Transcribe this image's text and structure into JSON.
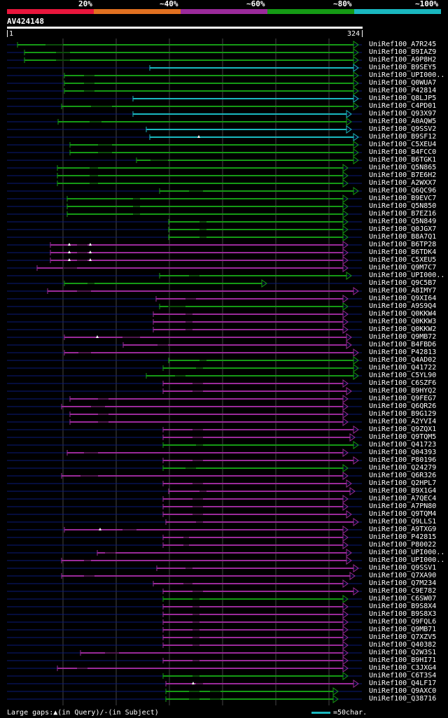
{
  "colors": {
    "c20": "#e8163c",
    "c40": "#e07020",
    "c60": "#9a2a9a",
    "c80": "#159a15",
    "c100": "#1ab8c0",
    "grid": "#444444",
    "thin": "#0a1a78",
    "white": "#ffffff"
  },
  "legend": [
    "20%",
    "~40%",
    "~60%",
    "~80%",
    "~100%"
  ],
  "query": {
    "title": "AV424148",
    "start": "1",
    "end": "324"
  },
  "rows": [
    {
      "label": "UniRef100_A7R245",
      "s": 25,
      "e": 512,
      "c": "g",
      "gaps": [
        [
          65,
          90
        ]
      ]
    },
    {
      "label": "UniRef100_B9IAZ9",
      "s": 35,
      "e": 512,
      "c": "g",
      "gaps": [
        [
          80,
          100
        ]
      ]
    },
    {
      "label": "UniRef100_A9P8H2",
      "s": 35,
      "e": 512,
      "c": "g",
      "gaps": [
        [
          80,
          100
        ]
      ]
    },
    {
      "label": "UniRef100_B9SEY5",
      "s": 214,
      "e": 512,
      "c": "c",
      "gaps": []
    },
    {
      "label": "UniRef100_UPI000..",
      "s": 92,
      "e": 512,
      "c": "g",
      "gaps": [
        [
          120,
          135
        ]
      ]
    },
    {
      "label": "UniRef100_Q0WUA7",
      "s": 92,
      "e": 512,
      "c": "g",
      "gaps": [
        [
          120,
          135
        ]
      ]
    },
    {
      "label": "UniRef100_P42814",
      "s": 92,
      "e": 512,
      "c": "g",
      "gaps": [
        [
          120,
          135
        ]
      ]
    },
    {
      "label": "UniRef100_Q8LJP5",
      "s": 190,
      "e": 512,
      "c": "c",
      "gaps": []
    },
    {
      "label": "UniRef100_C4PD01",
      "s": 88,
      "e": 512,
      "c": "g",
      "gaps": [
        [
          130,
          160
        ]
      ]
    },
    {
      "label": "UniRef100_Q93X97",
      "s": 190,
      "e": 502,
      "c": "c",
      "gaps": []
    },
    {
      "label": "UniRef100_A0AQW5",
      "s": 83,
      "e": 502,
      "c": "g",
      "gaps": [
        [
          128,
          145
        ]
      ]
    },
    {
      "label": "UniRef100_Q9SSV2",
      "s": 209,
      "e": 502,
      "c": "c",
      "gaps": []
    },
    {
      "label": "UniRef100_B9SF12",
      "s": 214,
      "e": 512,
      "c": "c",
      "gaps": [],
      "tri": [
        284
      ]
    },
    {
      "label": "UniRef100_C5XEU4",
      "s": 100,
      "e": 512,
      "c": "g",
      "gaps": [
        [
          140,
          160
        ]
      ]
    },
    {
      "label": "UniRef100_B4FCC0",
      "s": 100,
      "e": 512,
      "c": "g",
      "gaps": [
        [
          140,
          160
        ]
      ]
    },
    {
      "label": "UniRef100_B6TGK1",
      "s": 195,
      "e": 512,
      "c": "g",
      "gaps": [
        [
          215,
          240
        ]
      ]
    },
    {
      "label": "UniRef100_Q5N865",
      "s": 82,
      "e": 497,
      "c": "g",
      "gaps": [
        [
          128,
          140
        ]
      ]
    },
    {
      "label": "UniRef100_B7E6H2",
      "s": 82,
      "e": 497,
      "c": "g",
      "gaps": [
        [
          128,
          140
        ]
      ]
    },
    {
      "label": "UniRef100_A2WXX7",
      "s": 82,
      "e": 497,
      "c": "g",
      "gaps": [
        [
          128,
          140
        ]
      ]
    },
    {
      "label": "UniRef100_Q6QC96",
      "s": 228,
      "e": 512,
      "c": "g",
      "gaps": [
        [
          270,
          290
        ]
      ]
    },
    {
      "label": "UniRef100_B9EVC7",
      "s": 96,
      "e": 497,
      "c": "g",
      "gaps": [
        [
          190,
          200
        ]
      ]
    },
    {
      "label": "UniRef100_Q5N850",
      "s": 96,
      "e": 497,
      "c": "g",
      "gaps": [
        [
          190,
          200
        ]
      ]
    },
    {
      "label": "UniRef100_B7EZ16",
      "s": 96,
      "e": 497,
      "c": "g",
      "gaps": [
        [
          190,
          200
        ]
      ]
    },
    {
      "label": "UniRef100_Q5N849",
      "s": 241,
      "e": 497,
      "c": "g",
      "gaps": [
        [
          285,
          295
        ]
      ]
    },
    {
      "label": "UniRef100_Q0JGX7",
      "s": 241,
      "e": 497,
      "c": "g",
      "gaps": [
        [
          285,
          295
        ]
      ]
    },
    {
      "label": "UniRef100_B8A7Q1",
      "s": 241,
      "e": 497,
      "c": "g",
      "gaps": [
        [
          285,
          295
        ]
      ]
    },
    {
      "label": "UniRef100_B6TP28",
      "s": 72,
      "e": 497,
      "c": "m",
      "gaps": [
        [
          110,
          125
        ]
      ],
      "tri": [
        99,
        129
      ]
    },
    {
      "label": "UniRef100_B6TDK4",
      "s": 72,
      "e": 497,
      "c": "m",
      "gaps": [
        [
          110,
          125
        ]
      ],
      "tri": [
        99,
        129
      ]
    },
    {
      "label": "UniRef100_C5XEU5",
      "s": 72,
      "e": 497,
      "c": "m",
      "gaps": [
        [
          110,
          125
        ]
      ],
      "tri": [
        99,
        129
      ]
    },
    {
      "label": "UniRef100_Q9M7C7",
      "s": 53,
      "e": 497,
      "c": "m",
      "gaps": [
        [
          90,
          110
        ]
      ]
    },
    {
      "label": "UniRef100_UPI000..",
      "s": 228,
      "e": 502,
      "c": "g",
      "gaps": [
        [
          270,
          285
        ]
      ]
    },
    {
      "label": "UniRef100_Q9C5B7",
      "s": 92,
      "e": 381,
      "c": "g",
      "gaps": [
        [
          125,
          135
        ]
      ]
    },
    {
      "label": "UniRef100_A8IMY7",
      "s": 68,
      "e": 512,
      "c": "m",
      "gaps": [
        [
          110,
          130
        ]
      ]
    },
    {
      "label": "UniRef100_Q9XI64",
      "s": 223,
      "e": 497,
      "c": "m",
      "gaps": [
        [
          265,
          280
        ]
      ]
    },
    {
      "label": "UniRef100_A9S9Q4",
      "s": 228,
      "e": 497,
      "c": "g",
      "gaps": [
        [
          240,
          265
        ]
      ]
    },
    {
      "label": "UniRef100_Q0KKW4",
      "s": 219,
      "e": 497,
      "c": "m",
      "gaps": [
        [
          265,
          275
        ]
      ]
    },
    {
      "label": "UniRef100_Q0KKW3",
      "s": 219,
      "e": 497,
      "c": "m",
      "gaps": [
        [
          265,
          275
        ]
      ]
    },
    {
      "label": "UniRef100_Q0KKW2",
      "s": 219,
      "e": 497,
      "c": "m",
      "gaps": [
        [
          265,
          275
        ]
      ]
    },
    {
      "label": "UniRef100_Q9MB72",
      "s": 92,
      "e": 502,
      "c": "m",
      "gaps": [
        [
          175,
          200
        ]
      ],
      "tri": [
        139
      ]
    },
    {
      "label": "UniRef100_B4FBD6",
      "s": 176,
      "e": 502,
      "c": "m",
      "gaps": [
        [
          225,
          240
        ]
      ]
    },
    {
      "label": "UniRef100_P42813",
      "s": 92,
      "e": 512,
      "c": "m",
      "gaps": [
        [
          112,
          130
        ]
      ]
    },
    {
      "label": "UniRef100_Q4AD02",
      "s": 241,
      "e": 512,
      "c": "g",
      "gaps": [
        [
          285,
          295
        ]
      ]
    },
    {
      "label": "UniRef100_Q41722",
      "s": 233,
      "e": 512,
      "c": "g",
      "gaps": [
        [
          280,
          290
        ]
      ]
    },
    {
      "label": "UniRef100_C5YL90",
      "s": 209,
      "e": 512,
      "c": "g",
      "gaps": [
        [
          250,
          265
        ]
      ]
    },
    {
      "label": "UniRef100_C6SZF6",
      "s": 233,
      "e": 497,
      "c": "m",
      "gaps": [
        [
          275,
          290
        ]
      ]
    },
    {
      "label": "UniRef100_B9HYQ2",
      "s": 233,
      "e": 502,
      "c": "m",
      "gaps": [
        [
          275,
          290
        ]
      ]
    },
    {
      "label": "UniRef100_Q9FEG7",
      "s": 100,
      "e": 497,
      "c": "m",
      "gaps": [
        [
          140,
          155
        ]
      ]
    },
    {
      "label": "UniRef100_Q6QR26",
      "s": 88,
      "e": 497,
      "c": "m",
      "gaps": [
        [
          130,
          150
        ]
      ]
    },
    {
      "label": "UniRef100_B9G129",
      "s": 100,
      "e": 497,
      "c": "m",
      "gaps": [
        [
          140,
          155
        ]
      ]
    },
    {
      "label": "UniRef100_A2YVI4",
      "s": 100,
      "e": 497,
      "c": "m",
      "gaps": [
        [
          140,
          155
        ]
      ]
    },
    {
      "label": "UniRef100_Q9ZQX1",
      "s": 233,
      "e": 512,
      "c": "m",
      "gaps": [
        [
          275,
          290
        ]
      ]
    },
    {
      "label": "UniRef100_Q9TQM5",
      "s": 233,
      "e": 507,
      "c": "m",
      "gaps": [
        [
          275,
          290
        ]
      ]
    },
    {
      "label": "UniRef100_Q41723",
      "s": 233,
      "e": 512,
      "c": "g",
      "gaps": [
        [
          280,
          290
        ]
      ]
    },
    {
      "label": "UniRef100_Q04393",
      "s": 96,
      "e": 497,
      "c": "m",
      "gaps": [
        [
          120,
          140
        ]
      ]
    },
    {
      "label": "UniRef100_P80196",
      "s": 233,
      "e": 512,
      "c": "m",
      "gaps": [
        [
          275,
          290
        ]
      ]
    },
    {
      "label": "UniRef100_Q24279",
      "s": 233,
      "e": 497,
      "c": "g",
      "gaps": [
        [
          265,
          280
        ]
      ]
    },
    {
      "label": "UniRef100_Q6R326",
      "s": 88,
      "e": 497,
      "c": "m",
      "gaps": [
        [
          115,
          140
        ]
      ]
    },
    {
      "label": "UniRef100_Q2HPL7",
      "s": 233,
      "e": 502,
      "c": "m",
      "gaps": [
        [
          275,
          290
        ]
      ]
    },
    {
      "label": "UniRef100_B9X1G4",
      "s": 241,
      "e": 507,
      "c": "m",
      "gaps": [
        [
          285,
          295
        ]
      ]
    },
    {
      "label": "UniRef100_A7QEC4",
      "s": 233,
      "e": 497,
      "c": "m",
      "gaps": [
        [
          275,
          290
        ]
      ]
    },
    {
      "label": "UniRef100_A7PN80",
      "s": 233,
      "e": 497,
      "c": "m",
      "gaps": [
        [
          275,
          290
        ]
      ]
    },
    {
      "label": "UniRef100_Q9TQM4",
      "s": 233,
      "e": 502,
      "c": "m",
      "gaps": [
        [
          275,
          290
        ]
      ]
    },
    {
      "label": "UniRef100_Q9LLS1",
      "s": 237,
      "e": 512,
      "c": "m",
      "gaps": [
        [
          280,
          290
        ]
      ]
    },
    {
      "label": "UniRef100_A9TXG9",
      "s": 92,
      "e": 497,
      "c": "m",
      "gaps": [
        [
          175,
          195
        ]
      ],
      "tri": [
        143
      ]
    },
    {
      "label": "UniRef100_P42815",
      "s": 233,
      "e": 497,
      "c": "m",
      "gaps": [
        [
          262,
          270
        ]
      ]
    },
    {
      "label": "UniRef100_P80022",
      "s": 233,
      "e": 497,
      "c": "m",
      "gaps": [
        [
          262,
          270
        ]
      ]
    },
    {
      "label": "UniRef100_UPI000..",
      "s": 139,
      "e": 502,
      "c": "m",
      "gaps": [
        [
          150,
          165
        ]
      ]
    },
    {
      "label": "UniRef100_UPI000..",
      "s": 88,
      "e": 502,
      "c": "m",
      "gaps": [
        [
          120,
          130
        ]
      ]
    },
    {
      "label": "UniRef100_Q9SSV1",
      "s": 224,
      "e": 512,
      "c": "m",
      "gaps": [
        [
          265,
          275
        ]
      ]
    },
    {
      "label": "UniRef100_Q7XA90",
      "s": 88,
      "e": 507,
      "c": "m",
      "gaps": [
        [
          120,
          135
        ]
      ]
    },
    {
      "label": "UniRef100_Q7M234",
      "s": 219,
      "e": 497,
      "c": "m",
      "gaps": [
        [
          262,
          275
        ]
      ]
    },
    {
      "label": "UniRef100_C9E782",
      "s": 233,
      "e": 512,
      "c": "m",
      "gaps": [
        [
          275,
          290
        ]
      ]
    },
    {
      "label": "UniRef100_C6SW07",
      "s": 233,
      "e": 497,
      "c": "g",
      "gaps": [
        [
          275,
          285
        ]
      ]
    },
    {
      "label": "UniRef100_B9S8X4",
      "s": 233,
      "e": 497,
      "c": "m",
      "gaps": [
        [
          275,
          285
        ]
      ]
    },
    {
      "label": "UniRef100_B9S8X3",
      "s": 233,
      "e": 497,
      "c": "m",
      "gaps": [
        [
          275,
          285
        ]
      ]
    },
    {
      "label": "UniRef100_Q9FQL6",
      "s": 233,
      "e": 497,
      "c": "m",
      "gaps": [
        [
          275,
          285
        ]
      ]
    },
    {
      "label": "UniRef100_Q9MB71",
      "s": 233,
      "e": 497,
      "c": "m",
      "gaps": [
        [
          275,
          285
        ]
      ]
    },
    {
      "label": "UniRef100_Q7XZV5",
      "s": 233,
      "e": 497,
      "c": "m",
      "gaps": [
        [
          275,
          285
        ]
      ]
    },
    {
      "label": "UniRef100_Q40382",
      "s": 233,
      "e": 497,
      "c": "m",
      "gaps": [
        [
          275,
          285
        ]
      ]
    },
    {
      "label": "UniRef100_Q2W3S1",
      "s": 115,
      "e": 497,
      "c": "m",
      "gaps": [
        [
          150,
          170
        ]
      ]
    },
    {
      "label": "UniRef100_B9HI71",
      "s": 233,
      "e": 497,
      "c": "m",
      "gaps": [
        [
          275,
          285
        ]
      ]
    },
    {
      "label": "UniRef100_C3JXG4",
      "s": 82,
      "e": 497,
      "c": "m",
      "gaps": [
        [
          110,
          125
        ]
      ]
    },
    {
      "label": "UniRef100_C6T3S4",
      "s": 233,
      "e": 497,
      "c": "g",
      "gaps": [
        [
          275,
          285
        ]
      ]
    },
    {
      "label": "UniRef100_Q4LF17",
      "s": 237,
      "e": 512,
      "c": "m",
      "gaps": [
        [
          280,
          290
        ]
      ],
      "tri": [
        276
      ]
    },
    {
      "label": "UniRef100_Q9AXC0",
      "s": 237,
      "e": 483,
      "c": "g",
      "gaps": [
        [
          270,
          285
        ],
        [
          300,
          315
        ]
      ]
    },
    {
      "label": "UniRef100_Q38716",
      "s": 237,
      "e": 483,
      "c": "g",
      "gaps": [
        [
          270,
          285
        ],
        [
          300,
          315
        ]
      ]
    }
  ],
  "footer": {
    "large_gaps": "Large gaps:",
    "in_query": "(in Query)/",
    "in_subject": "-(in Subject)",
    "scale": "=50char."
  }
}
